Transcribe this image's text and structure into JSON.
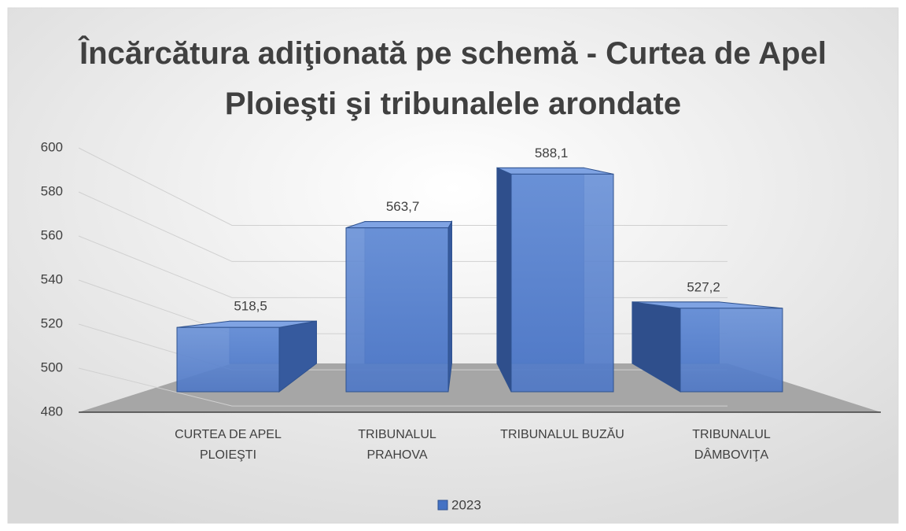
{
  "chart_data": {
    "type": "bar3d",
    "title": "Încărcătura adiţionată pe schemă - Curtea de Apel Ploieşti şi tribunalele arondate",
    "categories": [
      "CURTEA DE APEL PLOIEŞTI",
      "TRIBUNALUL PRAHOVA",
      "TRIBUNALUL BUZĂU",
      "TRIBUNALUL DÂMBOVIŢA"
    ],
    "series": [
      {
        "name": "2023",
        "color": "#4472c4",
        "values": [
          518.5,
          563.7,
          588.1,
          527.2
        ],
        "value_labels": [
          "518,5",
          "563,7",
          "588,1",
          "527,2"
        ]
      }
    ],
    "ylim": [
      480,
      600
    ],
    "yticks": [
      480,
      500,
      520,
      540,
      560,
      580,
      600
    ],
    "grid": true,
    "legend": "bottom"
  }
}
